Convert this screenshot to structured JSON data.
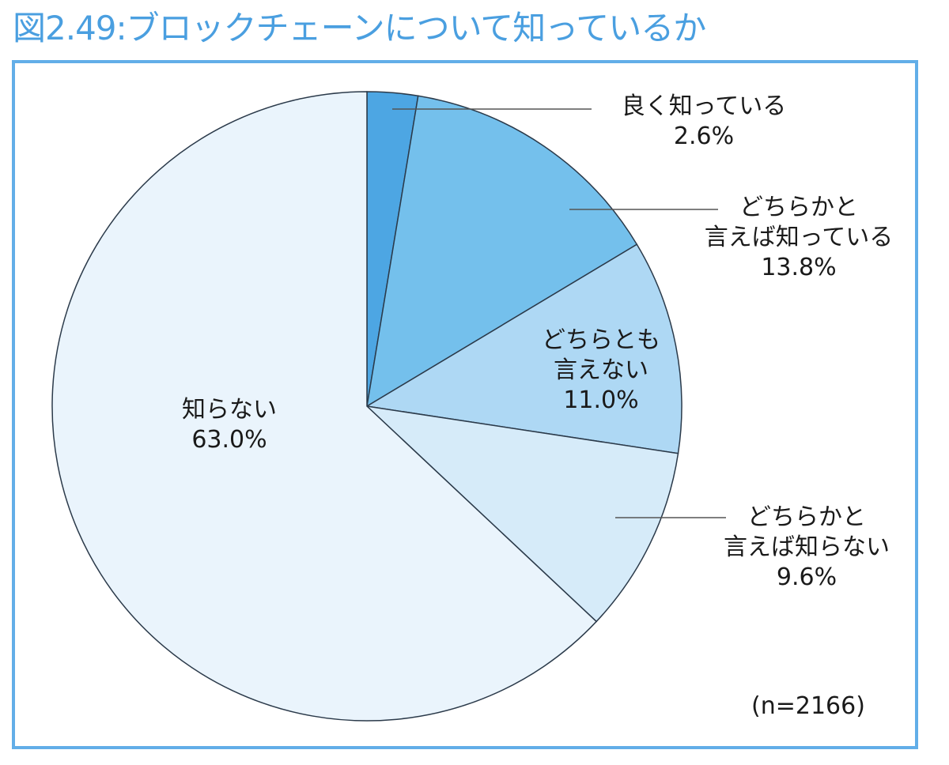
{
  "title": "図2.49:ブロックチェーンについて知っているか",
  "sample_size": "(n=2166)",
  "labels": {
    "s1": {
      "name": "良く知っている",
      "value": "2.6%"
    },
    "s2": {
      "name1": "どちらかと",
      "name2": "言えば知っている",
      "value": "13.8%"
    },
    "s3": {
      "name1": "どちらとも",
      "name2": "言えない",
      "value": "11.0%"
    },
    "s4": {
      "name1": "どちらかと",
      "name2": "言えば知らない",
      "value": "9.6%"
    },
    "s5": {
      "name": "知らない",
      "value": "63.0%"
    }
  },
  "colors": {
    "s1": "#4da6e3",
    "s2": "#74c0ec",
    "s3": "#aed8f4",
    "s4": "#d6ebf9",
    "s5": "#eaf4fc",
    "frame": "#62aee8",
    "title": "#4a9fe0"
  },
  "chart_data": {
    "type": "pie",
    "title": "図2.49:ブロックチェーンについて知っているか",
    "categories": [
      "良く知っている",
      "どちらかと言えば知っている",
      "どちらとも言えない",
      "どちらかと言えば知らない",
      "知らない"
    ],
    "values": [
      2.6,
      13.8,
      11.0,
      9.6,
      63.0
    ],
    "unit": "%",
    "start_angle": "12 o'clock",
    "direction": "clockwise",
    "annotation": "(n=2166)"
  }
}
